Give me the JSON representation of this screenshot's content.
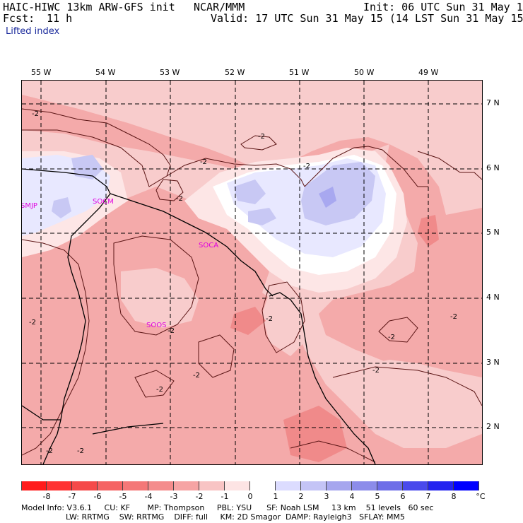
{
  "header": {
    "model_title": "HAIC-HIWC 13km ARW-GFS init",
    "org": "NCAR/MMM",
    "init_label": "Init: 06 UTC Sun 31 May 15",
    "fcst_label": "Fcst:",
    "fcst_value": "11 h",
    "valid_label": "Valid: 17 UTC Sun 31 May 15 (14 LST Sun 31 May 15)",
    "field_name": "Lifted index"
  },
  "map": {
    "lon_labels": [
      "55 W",
      "54 W",
      "53 W",
      "52 W",
      "51 W",
      "50 W",
      "49 W"
    ],
    "lat_labels": [
      "7 N",
      "6 N",
      "5 N",
      "4 N",
      "3 N",
      "2 N"
    ],
    "stations": [
      "SMJP",
      "SOCM",
      "SOCA",
      "SOOS"
    ],
    "contour_label": "-2",
    "colors": {
      "very_neg": "#f08a8a",
      "neg_mid": "#f4aaaa",
      "neg_light": "#f8cccc",
      "near_zero": "#fde6e6",
      "zero": "#ffffff",
      "pos_light": "#e8e8ff",
      "pos_mid": "#c8c8f4",
      "pos_strong": "#a8a8f0"
    }
  },
  "colorbar": {
    "ticks": [
      "-8",
      "-7",
      "-6",
      "-5",
      "-4",
      "-3",
      "-2",
      "-1",
      "0",
      "1",
      "2",
      "3",
      "4",
      "5",
      "6",
      "7",
      "8"
    ],
    "unit": "°C",
    "colors": [
      "#ff1b1b",
      "#ff3333",
      "#f54a4a",
      "#f56464",
      "#f47878",
      "#f48c8c",
      "#f6a4a4",
      "#f8c4c4",
      "#fde4e4",
      "#ffffff",
      "#dcdcff",
      "#c4c4f6",
      "#a6a6ee",
      "#8c8cea",
      "#6e6ee8",
      "#4a4aec",
      "#2424f0",
      "#0000ff"
    ]
  },
  "footer": {
    "line1": "Model Info: V3.6.1     CU: KF       MP: Thompson     PBL: YSU      SF: Noah LSM     13 km    51 levels   60 sec",
    "line2": "                  LW: RRTMG    SW: RRTMG    DIFF: full     KM: 2D Smagor  DAMP: Rayleigh3   SFLAY: MM5"
  }
}
